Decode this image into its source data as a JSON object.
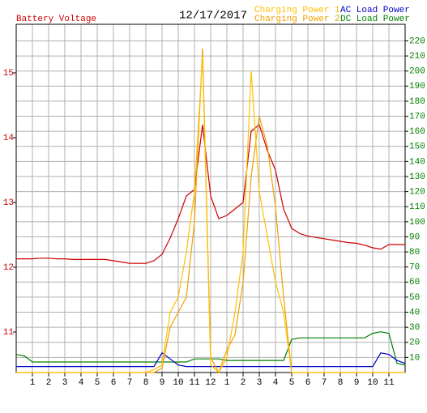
{
  "chart_data": {
    "type": "line",
    "title": "12/17/2017",
    "x": [
      0,
      0.5,
      1,
      1.5,
      2,
      2.5,
      3,
      3.5,
      4,
      4.5,
      5,
      5.5,
      6,
      6.5,
      7,
      7.5,
      8,
      8.5,
      9,
      9.5,
      10,
      10.5,
      11,
      11.5,
      12,
      12.5,
      13,
      13.5,
      14,
      14.5,
      15,
      15.5,
      16,
      16.5,
      17,
      17.5,
      18,
      18.5,
      19,
      19.5,
      20,
      20.5,
      21,
      21.5,
      22,
      22.5,
      23,
      23.5,
      24
    ],
    "xlim": [
      0,
      24
    ],
    "xticks": [
      1,
      2,
      3,
      4,
      5,
      6,
      7,
      8,
      9,
      10,
      11,
      12,
      {
        "value": 13,
        "label": "1"
      },
      {
        "value": 14,
        "label": "2"
      },
      {
        "value": 15,
        "label": "3"
      },
      {
        "value": 16,
        "label": "4"
      },
      {
        "value": 17,
        "label": "5"
      },
      {
        "value": 18,
        "label": "6"
      },
      {
        "value": 19,
        "label": "7"
      },
      {
        "value": 20,
        "label": "8"
      },
      {
        "value": 21,
        "label": "9"
      },
      {
        "value": 22,
        "label": "10"
      },
      {
        "value": 23,
        "label": "11"
      }
    ],
    "ylim": [
      10.375,
      15.75
    ],
    "yticks": [
      11,
      12,
      13,
      14,
      15
    ],
    "y2lim": [
      0,
      231
    ],
    "y2ticks": [
      10,
      20,
      30,
      40,
      50,
      60,
      70,
      80,
      90,
      100,
      110,
      120,
      130,
      140,
      150,
      160,
      170,
      180,
      190,
      200,
      210,
      220
    ],
    "grid": true,
    "series": [
      {
        "name": "Battery Voltage",
        "color": "#cc0000",
        "values": [
          12.13,
          12.13,
          12.13,
          12.14,
          12.14,
          12.13,
          12.13,
          12.12,
          12.12,
          12.12,
          12.12,
          12.12,
          12.1,
          12.08,
          12.06,
          12.06,
          12.06,
          12.1,
          12.2,
          12.45,
          12.75,
          13.1,
          13.2,
          14.2,
          13.1,
          12.75,
          12.8,
          12.9,
          13.0,
          14.1,
          14.2,
          13.8,
          13.5,
          12.9,
          12.6,
          12.52,
          12.48,
          12.46,
          12.44,
          12.42,
          12.4,
          12.38,
          12.37,
          12.34,
          12.3,
          12.28,
          12.35,
          12.35,
          12.35
        ]
      },
      {
        "name": "Charging Power 1",
        "color": "#ffc000",
        "axis": "y2",
        "values": [
          0,
          0,
          0,
          0,
          0,
          0,
          0,
          0,
          0,
          0,
          0,
          0,
          0,
          0,
          0,
          0,
          0,
          2,
          5,
          40,
          50,
          80,
          120,
          210,
          5,
          0,
          10,
          40,
          80,
          200,
          120,
          90,
          60,
          40,
          0,
          0,
          0,
          0,
          0,
          0,
          0,
          0,
          0,
          0,
          0,
          0,
          0,
          0,
          0
        ]
      },
      {
        "name": "Charging Power 2",
        "color": "#f0a000",
        "axis": "y2",
        "values": [
          0,
          0,
          0,
          0,
          0,
          0,
          0,
          0,
          0,
          0,
          0,
          0,
          0,
          0,
          0,
          0,
          0,
          0,
          3,
          30,
          40,
          50,
          100,
          215,
          10,
          0,
          15,
          25,
          60,
          130,
          170,
          150,
          110,
          50,
          0,
          0,
          0,
          0,
          0,
          0,
          0,
          0,
          0,
          0,
          0,
          0,
          0,
          0,
          0
        ]
      },
      {
        "name": "AC Load Power",
        "color": "#0000cc",
        "axis": "y2",
        "values": [
          4,
          4,
          4,
          4,
          4,
          4,
          4,
          4,
          4,
          4,
          4,
          4,
          4,
          4,
          4,
          4,
          4,
          4,
          13,
          9,
          5,
          4,
          4,
          4,
          4,
          4,
          4,
          4,
          4,
          4,
          4,
          4,
          4,
          4,
          4,
          4,
          4,
          4,
          4,
          4,
          4,
          4,
          4,
          4,
          4,
          13,
          12,
          8,
          6
        ]
      },
      {
        "name": "DC Load Power",
        "color": "#008000",
        "axis": "y2",
        "values": [
          12,
          11,
          7,
          7,
          7,
          7,
          7,
          7,
          7,
          7,
          7,
          7,
          7,
          7,
          7,
          7,
          7,
          7,
          7,
          7,
          7,
          7,
          9,
          9,
          9,
          9,
          8,
          8,
          8,
          8,
          8,
          8,
          8,
          8,
          22,
          23,
          23,
          23,
          23,
          23,
          23,
          23,
          23,
          23,
          26,
          27,
          26,
          6,
          5
        ]
      }
    ]
  }
}
